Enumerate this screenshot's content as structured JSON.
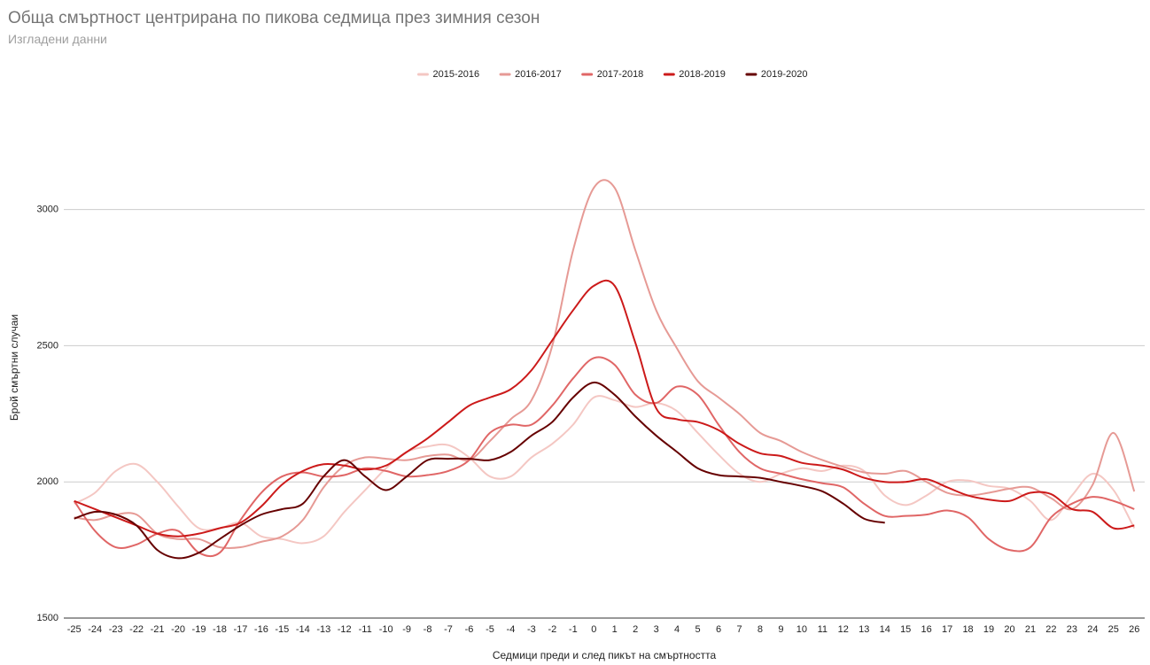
{
  "chart_data": {
    "type": "line",
    "title": "Обща смъртност центрирана по пикова седмица през зимния сезон",
    "subtitle": "Изгладени данни",
    "x_label": "Седмици преди и след пикът на смъртността",
    "y_label": "Брой смъртни случаи",
    "categories": [
      -25,
      -24,
      -23,
      -22,
      -21,
      -20,
      -19,
      -18,
      -17,
      -16,
      -15,
      -14,
      -13,
      -12,
      -11,
      -10,
      -9,
      -8,
      -7,
      -6,
      -5,
      -4,
      -3,
      -2,
      -1,
      0,
      1,
      2,
      3,
      4,
      5,
      6,
      7,
      8,
      9,
      10,
      11,
      12,
      13,
      14,
      15,
      16,
      17,
      18,
      19,
      20,
      21,
      22,
      23,
      24,
      25,
      26
    ],
    "ylim": [
      1500,
      3350
    ],
    "yticks": [
      1500,
      2000,
      2500,
      3000
    ],
    "grid": true,
    "legend": "top",
    "smooth": true,
    "series": [
      {
        "name": "2015-2016",
        "color": "#f4c7c3",
        "values": [
          1920,
          1960,
          2040,
          2065,
          2000,
          1910,
          1830,
          1830,
          1850,
          1800,
          1790,
          1775,
          1800,
          1890,
          1970,
          2050,
          2110,
          2130,
          2135,
          2090,
          2020,
          2020,
          2090,
          2140,
          2210,
          2310,
          2300,
          2275,
          2290,
          2260,
          2180,
          2100,
          2030,
          2000,
          2030,
          2050,
          2040,
          2060,
          2040,
          1950,
          1915,
          1950,
          2000,
          2005,
          1985,
          1975,
          1930,
          1860,
          1950,
          2030,
          1970,
          1830
        ]
      },
      {
        "name": "2016-2017",
        "color": "#e69a95",
        "values": [
          1870,
          1860,
          1880,
          1880,
          1810,
          1790,
          1790,
          1760,
          1760,
          1780,
          1800,
          1860,
          1980,
          2060,
          2090,
          2085,
          2080,
          2095,
          2100,
          2080,
          2150,
          2230,
          2300,
          2500,
          2850,
          3080,
          3080,
          2850,
          2630,
          2490,
          2370,
          2310,
          2250,
          2180,
          2150,
          2110,
          2080,
          2055,
          2035,
          2030,
          2040,
          2000,
          1960,
          1950,
          1960,
          1975,
          1980,
          1940,
          1900,
          1990,
          2180,
          1965
        ]
      },
      {
        "name": "2017-2018",
        "color": "#e06666",
        "values": [
          1930,
          1820,
          1760,
          1770,
          1810,
          1820,
          1740,
          1740,
          1860,
          1960,
          2020,
          2035,
          2020,
          2025,
          2050,
          2040,
          2020,
          2025,
          2040,
          2080,
          2180,
          2210,
          2210,
          2280,
          2380,
          2455,
          2430,
          2320,
          2290,
          2350,
          2320,
          2210,
          2110,
          2050,
          2030,
          2010,
          1995,
          1980,
          1920,
          1875,
          1875,
          1880,
          1895,
          1870,
          1790,
          1750,
          1760,
          1870,
          1920,
          1945,
          1930,
          1900
        ]
      },
      {
        "name": "2018-2019",
        "color": "#cc1a1a",
        "values": [
          1930,
          1900,
          1870,
          1840,
          1810,
          1800,
          1810,
          1830,
          1850,
          1910,
          1990,
          2040,
          2065,
          2060,
          2045,
          2060,
          2110,
          2160,
          2220,
          2280,
          2310,
          2340,
          2410,
          2520,
          2630,
          2720,
          2720,
          2510,
          2270,
          2230,
          2220,
          2190,
          2140,
          2105,
          2095,
          2070,
          2060,
          2045,
          2015,
          2000,
          2000,
          2010,
          1980,
          1950,
          1935,
          1930,
          1960,
          1955,
          1900,
          1890,
          1830,
          1840
        ]
      },
      {
        "name": "2019-2020",
        "color": "#660000",
        "values": [
          1865,
          1890,
          1880,
          1840,
          1750,
          1720,
          1740,
          1790,
          1840,
          1880,
          1900,
          1920,
          2020,
          2080,
          2020,
          1970,
          2020,
          2080,
          2085,
          2085,
          2080,
          2110,
          2170,
          2220,
          2310,
          2365,
          2320,
          2240,
          2170,
          2110,
          2050,
          2025,
          2020,
          2015,
          2000,
          1985,
          1965,
          1920,
          1865,
          1850,
          null,
          null,
          null,
          null,
          null,
          null,
          null,
          null,
          null,
          null,
          null,
          null
        ]
      }
    ]
  }
}
